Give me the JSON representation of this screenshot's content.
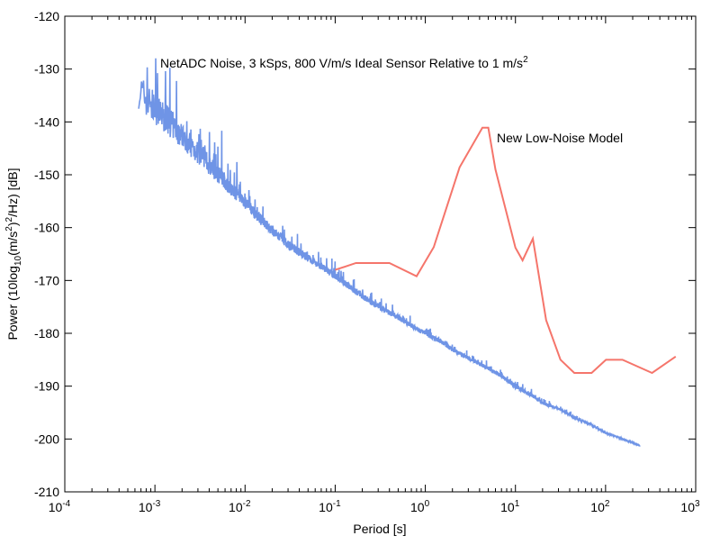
{
  "chart_data": {
    "type": "line",
    "xlabel": "Period [s]",
    "ylabel_parts": {
      "a": "Power (10log",
      "sub": "10",
      "b": "(m/s",
      "sup1": "2",
      "c": ")",
      "sup2": "2",
      "d": "/Hz) [dB]"
    },
    "x_scale": "log",
    "xlim": [
      0.0001,
      1000
    ],
    "ylim": [
      -210,
      -120
    ],
    "x_ticks": [
      {
        "base": "10",
        "exp": "-4",
        "v": 0.0001
      },
      {
        "base": "10",
        "exp": "-3",
        "v": 0.001
      },
      {
        "base": "10",
        "exp": "-2",
        "v": 0.01
      },
      {
        "base": "10",
        "exp": "-1",
        "v": 0.1
      },
      {
        "base": "10",
        "exp": "0",
        "v": 1
      },
      {
        "base": "10",
        "exp": "1",
        "v": 10
      },
      {
        "base": "10",
        "exp": "2",
        "v": 100
      },
      {
        "base": "10",
        "exp": "3",
        "v": 1000
      }
    ],
    "y_ticks": [
      "-120",
      "-130",
      "-140",
      "-150",
      "-160",
      "-170",
      "-180",
      "-190",
      "-200",
      "-210"
    ],
    "grid": false,
    "series": [
      {
        "name": "NetADC Noise, 3 kSps, 800 V/m/s Ideal Sensor Relative to 1 m/s",
        "label_sup": "2",
        "color": "#6f94e6",
        "x": [
          0.00066,
          0.0008,
          0.001,
          0.0015,
          0.002,
          0.003,
          0.005,
          0.007,
          0.01,
          0.015,
          0.02,
          0.03,
          0.05,
          0.07,
          0.1,
          0.15,
          0.2,
          0.3,
          0.5,
          0.7,
          1,
          1.5,
          2,
          3,
          5,
          7,
          10,
          15,
          20,
          30,
          50,
          70,
          100,
          150,
          240
        ],
        "y": [
          -137.5,
          -139,
          -140.5,
          -143,
          -145,
          -148,
          -151.5,
          -154,
          -156.5,
          -159.5,
          -161.5,
          -164,
          -166.5,
          -168,
          -169.8,
          -172,
          -173.5,
          -175.5,
          -177.5,
          -179,
          -180.5,
          -182,
          -183.5,
          -185,
          -187,
          -188.5,
          -190.5,
          -192,
          -193.5,
          -194.5,
          -196.5,
          -197.5,
          -199,
          -200,
          -201.3
        ],
        "spread_db": [
          12,
          11,
          10,
          9,
          8,
          7,
          5.5,
          4.5,
          4,
          3.5,
          3,
          2.8,
          2.5,
          2.3,
          2.2,
          2,
          2,
          1.8,
          1.7,
          1.6,
          1.5,
          1.4,
          1.3,
          1.2,
          1.2,
          1.2,
          1.5,
          1.2,
          1,
          0.8,
          0.6,
          0.5,
          0.4,
          0.3,
          0.2
        ]
      },
      {
        "name": "New Low-Noise Model",
        "color": "#f5756b",
        "x": [
          0.1,
          0.17,
          0.4,
          0.8,
          1.24,
          2.4,
          4.3,
          5.0,
          6.0,
          10.0,
          12.0,
          15.6,
          21.9,
          31.6,
          45.0,
          70.0,
          101.0,
          154.0,
          328.0,
          600.0
        ],
        "y": [
          -168.0,
          -166.7,
          -166.7,
          -169.2,
          -163.7,
          -148.6,
          -141.1,
          -141.1,
          -149.0,
          -163.8,
          -166.2,
          -162.1,
          -177.5,
          -185.0,
          -187.5,
          -187.5,
          -185.0,
          -185.0,
          -187.5,
          -184.4
        ]
      }
    ]
  }
}
